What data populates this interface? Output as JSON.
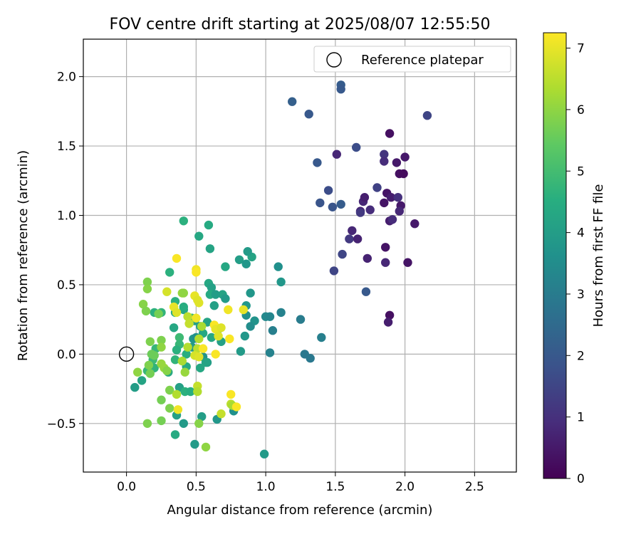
{
  "chart_data": {
    "type": "scatter",
    "title": "FOV centre drift starting at 2025/08/07 12:55:50",
    "xlabel": "Angular distance from reference (arcmin)",
    "ylabel": "Rotation from reference (arcmin)",
    "xlim": [
      -0.31,
      2.8
    ],
    "ylim": [
      -0.85,
      2.27
    ],
    "xticks": [
      0.0,
      0.5,
      1.0,
      1.5,
      2.0,
      2.5
    ],
    "xtick_labels": [
      "0.0",
      "0.5",
      "1.0",
      "1.5",
      "2.0",
      "2.5"
    ],
    "yticks": [
      -0.5,
      0.0,
      0.5,
      1.0,
      1.5,
      2.0
    ],
    "ytick_labels": [
      "−0.5",
      "0.0",
      "0.5",
      "1.0",
      "1.5",
      "2.0"
    ],
    "grid": true,
    "legend": {
      "placement": "top-right",
      "entries": [
        "Reference platepar"
      ]
    },
    "reference_point": {
      "x": 0.0,
      "y": 0.0,
      "marker": "open-circle"
    },
    "colorbar": {
      "label": "Hours from first FF file",
      "colormap": "viridis",
      "range": [
        0,
        7.25
      ],
      "ticks": [
        0,
        1,
        2,
        3,
        4,
        5,
        6,
        7
      ],
      "tick_labels": [
        "0",
        "1",
        "2",
        "3",
        "4",
        "5",
        "6",
        "7"
      ]
    },
    "points": [
      {
        "x": 2.16,
        "y": 1.72,
        "h": 1.5
      },
      {
        "x": 1.19,
        "y": 1.82,
        "h": 2.2
      },
      {
        "x": 1.31,
        "y": 1.73,
        "h": 2.0
      },
      {
        "x": 1.54,
        "y": 1.94,
        "h": 2.1
      },
      {
        "x": 1.54,
        "y": 1.91,
        "h": 2.0
      },
      {
        "x": 1.65,
        "y": 1.49,
        "h": 1.7
      },
      {
        "x": 1.37,
        "y": 1.38,
        "h": 2.0
      },
      {
        "x": 1.45,
        "y": 1.18,
        "h": 1.7
      },
      {
        "x": 1.39,
        "y": 1.09,
        "h": 1.9
      },
      {
        "x": 1.48,
        "y": 1.06,
        "h": 1.9
      },
      {
        "x": 1.54,
        "y": 1.08,
        "h": 2.1
      },
      {
        "x": 1.51,
        "y": 1.44,
        "h": 0.8
      },
      {
        "x": 1.8,
        "y": 1.2,
        "h": 1.4
      },
      {
        "x": 1.85,
        "y": 1.44,
        "h": 1.1
      },
      {
        "x": 1.89,
        "y": 1.59,
        "h": 0.3
      },
      {
        "x": 1.94,
        "y": 1.38,
        "h": 0.5
      },
      {
        "x": 2.0,
        "y": 1.42,
        "h": 0.5
      },
      {
        "x": 1.96,
        "y": 1.3,
        "h": 0.3
      },
      {
        "x": 1.99,
        "y": 1.3,
        "h": 0.2
      },
      {
        "x": 1.85,
        "y": 1.39,
        "h": 0.9
      },
      {
        "x": 1.7,
        "y": 1.1,
        "h": 0.8
      },
      {
        "x": 1.71,
        "y": 1.13,
        "h": 0.6
      },
      {
        "x": 1.75,
        "y": 1.04,
        "h": 0.9
      },
      {
        "x": 1.68,
        "y": 1.03,
        "h": 0.7
      },
      {
        "x": 1.68,
        "y": 1.02,
        "h": 1.2
      },
      {
        "x": 1.87,
        "y": 1.16,
        "h": 0.4
      },
      {
        "x": 1.9,
        "y": 1.13,
        "h": 0.6
      },
      {
        "x": 1.95,
        "y": 1.13,
        "h": 1.0
      },
      {
        "x": 1.85,
        "y": 1.09,
        "h": 0.4
      },
      {
        "x": 1.97,
        "y": 1.07,
        "h": 0.5
      },
      {
        "x": 1.96,
        "y": 1.03,
        "h": 0.8
      },
      {
        "x": 1.89,
        "y": 0.96,
        "h": 0.6
      },
      {
        "x": 1.91,
        "y": 0.97,
        "h": 0.9
      },
      {
        "x": 2.07,
        "y": 0.94,
        "h": 0.5
      },
      {
        "x": 1.62,
        "y": 0.89,
        "h": 0.8
      },
      {
        "x": 1.6,
        "y": 0.83,
        "h": 1.2
      },
      {
        "x": 1.66,
        "y": 0.83,
        "h": 0.7
      },
      {
        "x": 1.86,
        "y": 0.77,
        "h": 0.4
      },
      {
        "x": 1.55,
        "y": 0.72,
        "h": 1.5
      },
      {
        "x": 1.73,
        "y": 0.69,
        "h": 0.7
      },
      {
        "x": 1.86,
        "y": 0.66,
        "h": 0.8
      },
      {
        "x": 2.02,
        "y": 0.66,
        "h": 0.4
      },
      {
        "x": 1.49,
        "y": 0.6,
        "h": 1.5
      },
      {
        "x": 1.72,
        "y": 0.45,
        "h": 2.0
      },
      {
        "x": 1.89,
        "y": 0.28,
        "h": 0.3
      },
      {
        "x": 1.88,
        "y": 0.23,
        "h": 0.6
      },
      {
        "x": 0.41,
        "y": 0.96,
        "h": 4.6
      },
      {
        "x": 0.59,
        "y": 0.93,
        "h": 4.4
      },
      {
        "x": 0.52,
        "y": 0.85,
        "h": 4.3
      },
      {
        "x": 0.6,
        "y": 0.76,
        "h": 4.2
      },
      {
        "x": 0.9,
        "y": 0.7,
        "h": 4.2
      },
      {
        "x": 0.81,
        "y": 0.68,
        "h": 4.0
      },
      {
        "x": 0.87,
        "y": 0.74,
        "h": 3.9
      },
      {
        "x": 0.71,
        "y": 0.63,
        "h": 4.3
      },
      {
        "x": 0.86,
        "y": 0.65,
        "h": 3.8
      },
      {
        "x": 1.09,
        "y": 0.63,
        "h": 3.6
      },
      {
        "x": 1.11,
        "y": 0.52,
        "h": 3.8
      },
      {
        "x": 0.59,
        "y": 0.51,
        "h": 4.3
      },
      {
        "x": 0.61,
        "y": 0.48,
        "h": 4.1
      },
      {
        "x": 0.6,
        "y": 0.43,
        "h": 4.4
      },
      {
        "x": 0.69,
        "y": 0.43,
        "h": 4.2
      },
      {
        "x": 0.89,
        "y": 0.44,
        "h": 3.8
      },
      {
        "x": 0.64,
        "y": 0.43,
        "h": 4.0
      },
      {
        "x": 0.71,
        "y": 0.4,
        "h": 3.9
      },
      {
        "x": 0.63,
        "y": 0.35,
        "h": 4.1
      },
      {
        "x": 0.86,
        "y": 0.35,
        "h": 3.8
      },
      {
        "x": 0.41,
        "y": 0.32,
        "h": 4.3
      },
      {
        "x": 0.86,
        "y": 0.28,
        "h": 3.6
      },
      {
        "x": 1.0,
        "y": 0.27,
        "h": 3.4
      },
      {
        "x": 1.03,
        "y": 0.27,
        "h": 3.3
      },
      {
        "x": 1.11,
        "y": 0.3,
        "h": 3.2
      },
      {
        "x": 1.25,
        "y": 0.25,
        "h": 3.0
      },
      {
        "x": 0.92,
        "y": 0.24,
        "h": 3.7
      },
      {
        "x": 0.89,
        "y": 0.2,
        "h": 3.5
      },
      {
        "x": 0.58,
        "y": 0.23,
        "h": 4.2
      },
      {
        "x": 0.49,
        "y": 0.24,
        "h": 4.1
      },
      {
        "x": 0.53,
        "y": 0.2,
        "h": 4.0
      },
      {
        "x": 0.66,
        "y": 0.18,
        "h": 3.9
      },
      {
        "x": 0.55,
        "y": 0.15,
        "h": 4.3
      },
      {
        "x": 0.61,
        "y": 0.12,
        "h": 4.3
      },
      {
        "x": 0.48,
        "y": 0.11,
        "h": 3.8
      },
      {
        "x": 0.5,
        "y": 0.12,
        "h": 3.6
      },
      {
        "x": 1.05,
        "y": 0.17,
        "h": 3.1
      },
      {
        "x": 0.85,
        "y": 0.13,
        "h": 3.8
      },
      {
        "x": 1.4,
        "y": 0.12,
        "h": 3.1
      },
      {
        "x": 0.68,
        "y": 0.09,
        "h": 4.1
      },
      {
        "x": 0.47,
        "y": 0.05,
        "h": 3.9
      },
      {
        "x": 0.82,
        "y": 0.02,
        "h": 3.9
      },
      {
        "x": 1.03,
        "y": 0.01,
        "h": 3.2
      },
      {
        "x": 1.28,
        "y": 0.0,
        "h": 2.9
      },
      {
        "x": 1.32,
        "y": -0.03,
        "h": 2.9
      },
      {
        "x": 0.55,
        "y": -0.02,
        "h": 3.7
      },
      {
        "x": 0.58,
        "y": -0.06,
        "h": 4.0
      },
      {
        "x": 0.57,
        "y": -0.06,
        "h": 4.2
      },
      {
        "x": 0.31,
        "y": 0.59,
        "h": 4.6
      },
      {
        "x": 0.35,
        "y": 0.38,
        "h": 4.6
      },
      {
        "x": 0.41,
        "y": 0.34,
        "h": 4.5
      },
      {
        "x": 0.35,
        "y": 0.3,
        "h": 4.4
      },
      {
        "x": 0.34,
        "y": 0.19,
        "h": 4.3
      },
      {
        "x": 0.2,
        "y": 0.3,
        "h": 4.6
      },
      {
        "x": 0.25,
        "y": 0.3,
        "h": 4.7
      },
      {
        "x": 0.47,
        "y": 0.26,
        "h": 4.8
      },
      {
        "x": 0.38,
        "y": 0.12,
        "h": 4.9
      },
      {
        "x": 0.38,
        "y": 0.07,
        "h": 4.8
      },
      {
        "x": 0.21,
        "y": 0.04,
        "h": 4.8
      },
      {
        "x": 0.36,
        "y": 0.03,
        "h": 4.6
      },
      {
        "x": 0.43,
        "y": 0.0,
        "h": 4.5
      },
      {
        "x": 0.35,
        "y": -0.04,
        "h": 4.7
      },
      {
        "x": 0.19,
        "y": -0.04,
        "h": 4.9
      },
      {
        "x": 0.43,
        "y": -0.09,
        "h": 4.4
      },
      {
        "x": 0.3,
        "y": -0.13,
        "h": 4.3
      },
      {
        "x": 0.53,
        "y": -0.1,
        "h": 4.3
      },
      {
        "x": 0.15,
        "y": -0.12,
        "h": 4.8
      },
      {
        "x": 0.2,
        "y": -0.1,
        "h": 4.7
      },
      {
        "x": 0.11,
        "y": -0.19,
        "h": 4.2
      },
      {
        "x": 0.06,
        "y": -0.24,
        "h": 4.0
      },
      {
        "x": 0.38,
        "y": -0.24,
        "h": 4.1
      },
      {
        "x": 0.42,
        "y": -0.27,
        "h": 4.6
      },
      {
        "x": 0.46,
        "y": -0.27,
        "h": 4.5
      },
      {
        "x": 0.36,
        "y": -0.44,
        "h": 4.1
      },
      {
        "x": 0.54,
        "y": -0.45,
        "h": 4.0
      },
      {
        "x": 0.41,
        "y": -0.5,
        "h": 3.9
      },
      {
        "x": 0.65,
        "y": -0.47,
        "h": 3.8
      },
      {
        "x": 0.77,
        "y": -0.41,
        "h": 3.6
      },
      {
        "x": 0.35,
        "y": -0.58,
        "h": 4.4
      },
      {
        "x": 0.49,
        "y": -0.65,
        "h": 3.9
      },
      {
        "x": 0.99,
        "y": -0.72,
        "h": 3.9
      },
      {
        "x": 0.15,
        "y": 0.52,
        "h": 5.8
      },
      {
        "x": 0.15,
        "y": 0.47,
        "h": 5.9
      },
      {
        "x": 0.12,
        "y": 0.36,
        "h": 5.9
      },
      {
        "x": 0.14,
        "y": 0.31,
        "h": 5.8
      },
      {
        "x": 0.4,
        "y": 0.44,
        "h": 6.1
      },
      {
        "x": 0.23,
        "y": 0.29,
        "h": 5.7
      },
      {
        "x": 0.17,
        "y": 0.09,
        "h": 5.8
      },
      {
        "x": 0.25,
        "y": 0.1,
        "h": 5.8
      },
      {
        "x": 0.25,
        "y": 0.05,
        "h": 6.0
      },
      {
        "x": 0.18,
        "y": 0.0,
        "h": 5.6
      },
      {
        "x": 0.2,
        "y": -0.01,
        "h": 5.6
      },
      {
        "x": 0.25,
        "y": -0.07,
        "h": 6.1
      },
      {
        "x": 0.27,
        "y": -0.1,
        "h": 6.1
      },
      {
        "x": 0.29,
        "y": -0.12,
        "h": 5.9
      },
      {
        "x": 0.16,
        "y": -0.08,
        "h": 5.8
      },
      {
        "x": 0.08,
        "y": -0.13,
        "h": 6.0
      },
      {
        "x": 0.17,
        "y": -0.14,
        "h": 5.7
      },
      {
        "x": 0.42,
        "y": -0.13,
        "h": 6.1
      },
      {
        "x": 0.31,
        "y": -0.26,
        "h": 5.8
      },
      {
        "x": 0.36,
        "y": -0.29,
        "h": 6.4
      },
      {
        "x": 0.25,
        "y": -0.33,
        "h": 5.7
      },
      {
        "x": 0.31,
        "y": -0.39,
        "h": 5.8
      },
      {
        "x": 0.25,
        "y": -0.48,
        "h": 5.7
      },
      {
        "x": 0.15,
        "y": -0.5,
        "h": 5.8
      },
      {
        "x": 0.52,
        "y": -0.5,
        "h": 5.9
      },
      {
        "x": 0.57,
        "y": -0.67,
        "h": 6.0
      },
      {
        "x": 0.41,
        "y": 0.44,
        "h": 6.0
      },
      {
        "x": 0.29,
        "y": 0.45,
        "h": 6.8
      },
      {
        "x": 0.44,
        "y": 0.27,
        "h": 6.5
      },
      {
        "x": 0.45,
        "y": 0.22,
        "h": 6.6
      },
      {
        "x": 0.54,
        "y": 0.2,
        "h": 6.3
      },
      {
        "x": 0.52,
        "y": 0.11,
        "h": 6.4
      },
      {
        "x": 0.44,
        "y": 0.05,
        "h": 6.4
      },
      {
        "x": 0.51,
        "y": 0.04,
        "h": 6.5
      },
      {
        "x": 0.4,
        "y": -0.05,
        "h": 6.3
      },
      {
        "x": 0.49,
        "y": -0.01,
        "h": 6.8
      },
      {
        "x": 0.52,
        "y": -0.02,
        "h": 6.9
      },
      {
        "x": 0.51,
        "y": -0.23,
        "h": 6.6
      },
      {
        "x": 0.51,
        "y": -0.27,
        "h": 6.4
      },
      {
        "x": 0.75,
        "y": -0.36,
        "h": 6.5
      },
      {
        "x": 0.76,
        "y": -0.37,
        "h": 6.3
      },
      {
        "x": 0.68,
        "y": -0.43,
        "h": 6.6
      },
      {
        "x": 0.36,
        "y": 0.69,
        "h": 7.2
      },
      {
        "x": 0.5,
        "y": 0.61,
        "h": 7.1
      },
      {
        "x": 0.5,
        "y": 0.59,
        "h": 7.2
      },
      {
        "x": 0.49,
        "y": 0.42,
        "h": 7.0
      },
      {
        "x": 0.51,
        "y": 0.39,
        "h": 6.9
      },
      {
        "x": 0.52,
        "y": 0.37,
        "h": 6.9
      },
      {
        "x": 0.34,
        "y": 0.34,
        "h": 7.0
      },
      {
        "x": 0.36,
        "y": 0.3,
        "h": 6.9
      },
      {
        "x": 0.73,
        "y": 0.32,
        "h": 7.1
      },
      {
        "x": 0.84,
        "y": 0.32,
        "h": 7.0
      },
      {
        "x": 0.5,
        "y": 0.26,
        "h": 7.1
      },
      {
        "x": 0.63,
        "y": 0.21,
        "h": 7.2
      },
      {
        "x": 0.64,
        "y": 0.18,
        "h": 7.0
      },
      {
        "x": 0.68,
        "y": 0.19,
        "h": 6.9
      },
      {
        "x": 0.74,
        "y": 0.11,
        "h": 7.2
      },
      {
        "x": 0.66,
        "y": 0.13,
        "h": 6.9
      },
      {
        "x": 0.55,
        "y": 0.04,
        "h": 7.2
      },
      {
        "x": 0.64,
        "y": 0.0,
        "h": 7.2
      },
      {
        "x": 0.75,
        "y": -0.29,
        "h": 7.2
      },
      {
        "x": 0.79,
        "y": -0.38,
        "h": 7.2
      },
      {
        "x": 0.37,
        "y": -0.4,
        "h": 7.1
      }
    ]
  }
}
